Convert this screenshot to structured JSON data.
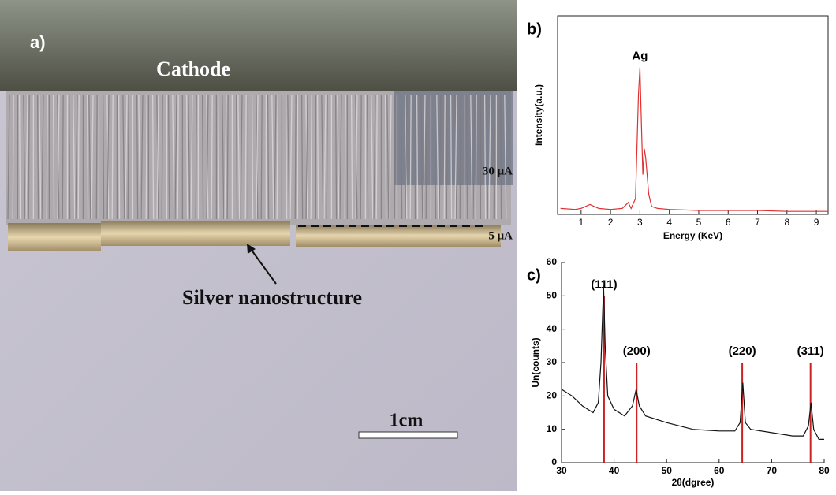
{
  "photo": {
    "label": "a)",
    "cathode": "Cathode",
    "current_high": "30 μA",
    "current_low": "5 μA",
    "annotation": "Silver nanostructure",
    "scale_bar": "1cm"
  },
  "chart_data": [
    {
      "type": "line",
      "label": "b)",
      "annotation": "Ag",
      "xlabel": "Energy (KeV)",
      "ylabel": "Intensity(a.u.)",
      "color": "#e03030",
      "x": [
        0.3,
        0.8,
        1.0,
        1.3,
        1.6,
        2.0,
        2.4,
        2.6,
        2.7,
        2.85,
        2.95,
        3.0,
        3.05,
        3.1,
        3.15,
        3.2,
        3.3,
        3.4,
        3.6,
        4.0,
        5.0,
        6.0,
        7.0,
        8.0,
        9.0,
        9.4
      ],
      "values": [
        3,
        2.5,
        3,
        5,
        3,
        2.5,
        3,
        6,
        3,
        8,
        60,
        74,
        45,
        20,
        33,
        28,
        10,
        4,
        3,
        2.5,
        2,
        2,
        2,
        1.5,
        1.5,
        1.5
      ],
      "xlim": [
        0.2,
        9.4
      ],
      "ylim": [
        0,
        100
      ],
      "xticks": [
        1,
        2,
        3,
        4,
        5,
        6,
        7,
        8,
        9
      ]
    },
    {
      "type": "line",
      "label": "c)",
      "xlabel": "2θ(dgree)",
      "ylabel": "Un(counts)",
      "color": "#111111",
      "x": [
        30,
        32,
        34,
        36,
        37,
        37.5,
        38,
        38.3,
        38.8,
        40,
        42,
        43.5,
        44.2,
        44.8,
        46,
        50,
        55,
        60,
        63,
        64,
        64.5,
        65,
        66,
        70,
        74,
        76,
        77,
        77.5,
        78,
        79,
        80
      ],
      "values": [
        22,
        20,
        17,
        15,
        18,
        30,
        53,
        35,
        20,
        16,
        14,
        17,
        22,
        17,
        14,
        12,
        10,
        9.5,
        9.5,
        12,
        24,
        12,
        10,
        9,
        8,
        8,
        11,
        18,
        10,
        7,
        7
      ],
      "peaks": {
        "color": "#cc2222",
        "labels": [
          "(111)",
          "(200)",
          "(220)",
          "(311)"
        ],
        "x": [
          38.1,
          44.3,
          64.4,
          77.4
        ],
        "values": [
          50,
          30,
          30,
          30
        ]
      },
      "xlim": [
        30,
        80
      ],
      "ylim": [
        0,
        60
      ],
      "xticks": [
        30,
        40,
        50,
        60,
        70,
        80
      ],
      "yticks": [
        0,
        10,
        20,
        30,
        40,
        50,
        60
      ]
    }
  ]
}
